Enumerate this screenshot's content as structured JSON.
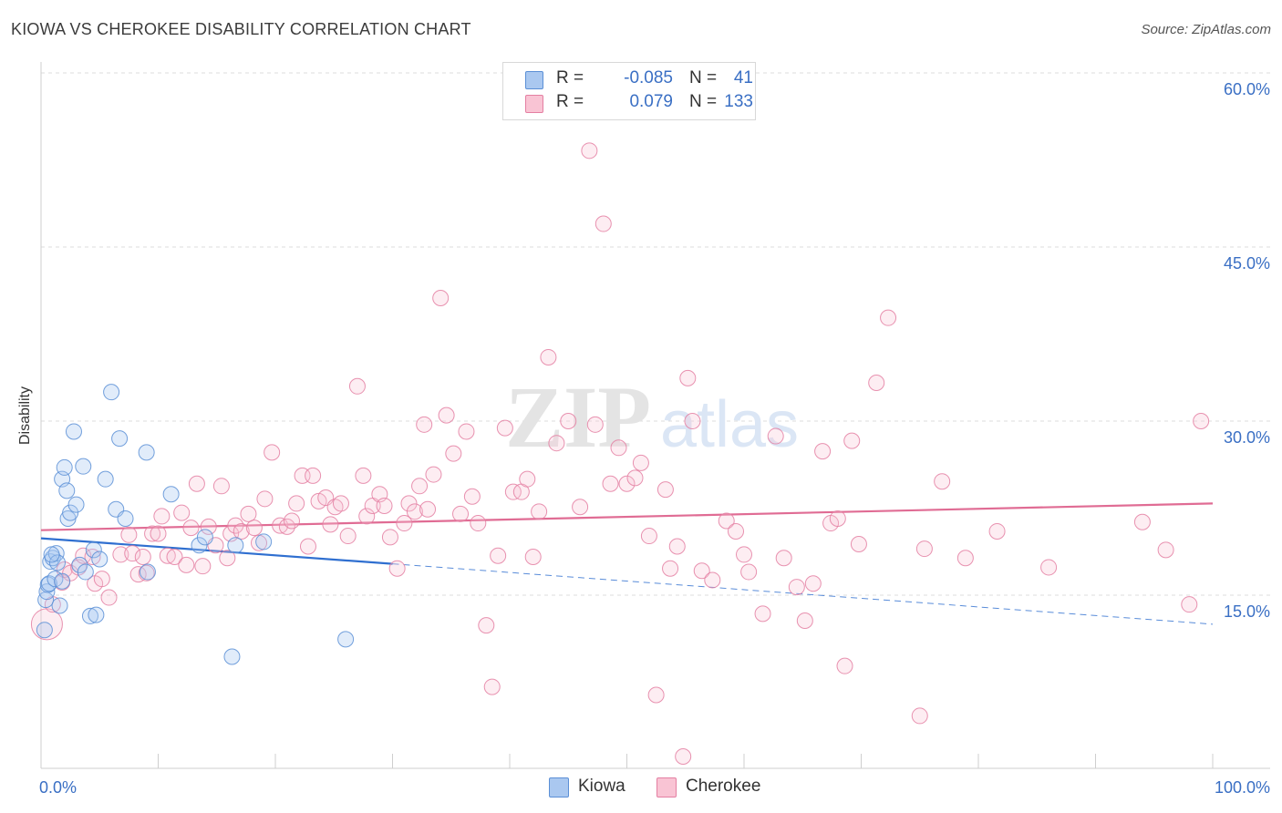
{
  "title": "KIOWA VS CHEROKEE DISABILITY CORRELATION CHART",
  "source": "Source: ZipAtlas.com",
  "watermark": {
    "zip": "ZIP",
    "atlas": "atlas"
  },
  "legend": {
    "rows": [
      {
        "r_label": "R =",
        "r_value": "-0.085",
        "n_label": "N =",
        "n_value": "41",
        "color": "#aac8f0",
        "border": "#5b8fd6"
      },
      {
        "r_label": "R =",
        "r_value": "0.079",
        "n_label": "N =",
        "n_value": "133",
        "color": "#f9c4d4",
        "border": "#e47fa2"
      }
    ]
  },
  "bottom_legend": [
    {
      "label": "Kiowa",
      "color": "#aac8f0",
      "border": "#5b8fd6"
    },
    {
      "label": "Cherokee",
      "color": "#f9c4d4",
      "border": "#e47fa2"
    }
  ],
  "chart_data": {
    "type": "scatter",
    "ylabel": "Disability",
    "xlim": [
      0,
      100
    ],
    "ylim": [
      0,
      61
    ],
    "x_tick_labels": [
      {
        "value": 0,
        "label": "0.0%"
      },
      {
        "value": 100,
        "label": "100.0%"
      }
    ],
    "y_tick_labels": [
      {
        "value": 15,
        "label": "15.0%"
      },
      {
        "value": 30,
        "label": "30.0%"
      },
      {
        "value": 45,
        "label": "45.0%"
      },
      {
        "value": 60,
        "label": "60.0%"
      }
    ],
    "grid": true,
    "colors": {
      "kiowa": "#5b8fd6",
      "kiowa_line": "#2f6fd0",
      "cherokee": "#e47fa2",
      "cherokee_line": "#e06c94",
      "tick_text": "#3a6fc4"
    },
    "series": [
      {
        "name": "Kiowa",
        "trend": {
          "x0": 0,
          "y0": 19.9,
          "x1": 30,
          "y1": 17.7,
          "dash_to_x": 100,
          "dash_to_y": 12.5
        },
        "points": [
          [
            0.3,
            12.0
          ],
          [
            0.4,
            14.6
          ],
          [
            0.5,
            15.3
          ],
          [
            0.6,
            15.9
          ],
          [
            0.7,
            16.0
          ],
          [
            0.8,
            17.9
          ],
          [
            1.0,
            18.2
          ],
          [
            1.2,
            16.4
          ],
          [
            1.3,
            18.6
          ],
          [
            1.4,
            17.8
          ],
          [
            1.6,
            14.1
          ],
          [
            1.8,
            16.2
          ],
          [
            1.8,
            25.0
          ],
          [
            2.0,
            26.0
          ],
          [
            2.2,
            24.0
          ],
          [
            2.3,
            21.6
          ],
          [
            2.5,
            22.1
          ],
          [
            2.8,
            29.1
          ],
          [
            3.0,
            22.8
          ],
          [
            3.3,
            17.6
          ],
          [
            3.6,
            26.1
          ],
          [
            3.8,
            17.0
          ],
          [
            4.2,
            13.2
          ],
          [
            4.5,
            18.9
          ],
          [
            4.7,
            13.3
          ],
          [
            5.0,
            18.1
          ],
          [
            5.5,
            25.0
          ],
          [
            6.4,
            22.4
          ],
          [
            6.7,
            28.5
          ],
          [
            6.0,
            32.5
          ],
          [
            7.2,
            21.6
          ],
          [
            9.0,
            27.3
          ],
          [
            9.1,
            17.0
          ],
          [
            11.1,
            23.7
          ],
          [
            13.5,
            19.3
          ],
          [
            14.0,
            20.0
          ],
          [
            16.3,
            9.7
          ],
          [
            16.6,
            19.3
          ],
          [
            19.0,
            19.6
          ],
          [
            26.0,
            11.2
          ],
          [
            0.9,
            18.5
          ]
        ]
      },
      {
        "name": "Cherokee",
        "trend": {
          "x0": 0,
          "y0": 20.6,
          "x1": 100,
          "y1": 22.9
        },
        "points": [
          [
            0.5,
            12.5
          ],
          [
            1.0,
            14.2
          ],
          [
            1.8,
            16.1
          ],
          [
            2.0,
            17.2
          ],
          [
            2.5,
            16.9
          ],
          [
            3.2,
            17.4
          ],
          [
            3.6,
            18.4
          ],
          [
            4.4,
            18.3
          ],
          [
            4.6,
            16.0
          ],
          [
            5.2,
            16.4
          ],
          [
            5.8,
            14.8
          ],
          [
            6.8,
            18.5
          ],
          [
            7.5,
            20.2
          ],
          [
            7.8,
            18.6
          ],
          [
            8.3,
            16.8
          ],
          [
            8.7,
            18.3
          ],
          [
            9.0,
            16.9
          ],
          [
            9.5,
            20.3
          ],
          [
            10.0,
            20.3
          ],
          [
            10.3,
            21.8
          ],
          [
            10.8,
            18.4
          ],
          [
            11.4,
            18.3
          ],
          [
            12.0,
            22.1
          ],
          [
            12.4,
            17.6
          ],
          [
            12.8,
            20.8
          ],
          [
            13.3,
            24.6
          ],
          [
            13.8,
            17.5
          ],
          [
            14.3,
            20.9
          ],
          [
            14.9,
            19.3
          ],
          [
            15.4,
            24.4
          ],
          [
            15.9,
            18.2
          ],
          [
            16.2,
            20.3
          ],
          [
            16.6,
            21.0
          ],
          [
            17.1,
            20.5
          ],
          [
            17.7,
            22.0
          ],
          [
            18.2,
            20.8
          ],
          [
            18.6,
            19.5
          ],
          [
            19.1,
            23.3
          ],
          [
            19.7,
            27.3
          ],
          [
            20.4,
            21.0
          ],
          [
            21.0,
            20.9
          ],
          [
            21.4,
            21.4
          ],
          [
            21.8,
            22.9
          ],
          [
            22.3,
            25.3
          ],
          [
            22.8,
            19.2
          ],
          [
            23.2,
            25.3
          ],
          [
            23.7,
            23.1
          ],
          [
            24.3,
            23.4
          ],
          [
            24.7,
            21.1
          ],
          [
            25.1,
            22.6
          ],
          [
            25.6,
            22.9
          ],
          [
            26.2,
            20.1
          ],
          [
            27.0,
            33.0
          ],
          [
            27.5,
            25.3
          ],
          [
            27.8,
            21.8
          ],
          [
            28.3,
            22.7
          ],
          [
            28.9,
            23.7
          ],
          [
            29.3,
            22.7
          ],
          [
            29.8,
            20.0
          ],
          [
            30.4,
            17.3
          ],
          [
            31.0,
            21.2
          ],
          [
            31.4,
            22.9
          ],
          [
            31.9,
            22.2
          ],
          [
            32.3,
            24.4
          ],
          [
            32.7,
            29.7
          ],
          [
            33.5,
            25.4
          ],
          [
            33.0,
            22.4
          ],
          [
            34.1,
            40.6
          ],
          [
            34.6,
            30.5
          ],
          [
            35.2,
            27.2
          ],
          [
            35.8,
            22.0
          ],
          [
            36.3,
            29.1
          ],
          [
            36.8,
            23.5
          ],
          [
            37.3,
            21.2
          ],
          [
            38.0,
            12.4
          ],
          [
            38.5,
            7.1
          ],
          [
            39.0,
            18.4
          ],
          [
            39.6,
            29.4
          ],
          [
            40.3,
            23.9
          ],
          [
            41.0,
            23.9
          ],
          [
            41.5,
            25.0
          ],
          [
            42.0,
            18.3
          ],
          [
            42.5,
            22.2
          ],
          [
            43.3,
            35.5
          ],
          [
            44.0,
            28.1
          ],
          [
            45.0,
            30.0
          ],
          [
            46.0,
            22.6
          ],
          [
            46.8,
            53.3
          ],
          [
            47.3,
            29.7
          ],
          [
            48.0,
            47.0
          ],
          [
            48.6,
            24.6
          ],
          [
            49.3,
            27.7
          ],
          [
            50.0,
            24.6
          ],
          [
            50.7,
            25.1
          ],
          [
            51.2,
            26.4
          ],
          [
            51.9,
            20.1
          ],
          [
            52.5,
            6.4
          ],
          [
            53.3,
            24.1
          ],
          [
            53.7,
            17.3
          ],
          [
            54.3,
            19.2
          ],
          [
            54.8,
            1.1
          ],
          [
            55.2,
            33.7
          ],
          [
            55.6,
            30.0
          ],
          [
            56.4,
            17.1
          ],
          [
            57.3,
            16.3
          ],
          [
            58.5,
            21.4
          ],
          [
            59.3,
            20.5
          ],
          [
            60.0,
            18.5
          ],
          [
            60.4,
            17.0
          ],
          [
            61.6,
            13.4
          ],
          [
            62.7,
            28.7
          ],
          [
            63.4,
            18.2
          ],
          [
            64.5,
            15.7
          ],
          [
            65.2,
            12.8
          ],
          [
            65.9,
            16.0
          ],
          [
            66.7,
            27.4
          ],
          [
            67.4,
            21.2
          ],
          [
            68.0,
            21.6
          ],
          [
            68.6,
            8.9
          ],
          [
            69.2,
            28.3
          ],
          [
            69.8,
            19.4
          ],
          [
            71.3,
            33.3
          ],
          [
            72.3,
            38.9
          ],
          [
            75.0,
            4.6
          ],
          [
            75.4,
            19.0
          ],
          [
            76.9,
            24.8
          ],
          [
            78.9,
            18.2
          ],
          [
            81.6,
            20.5
          ],
          [
            86.0,
            17.4
          ],
          [
            94.0,
            21.3
          ],
          [
            96.0,
            18.9
          ],
          [
            98.0,
            14.2
          ],
          [
            99.0,
            30.0
          ]
        ]
      }
    ]
  }
}
